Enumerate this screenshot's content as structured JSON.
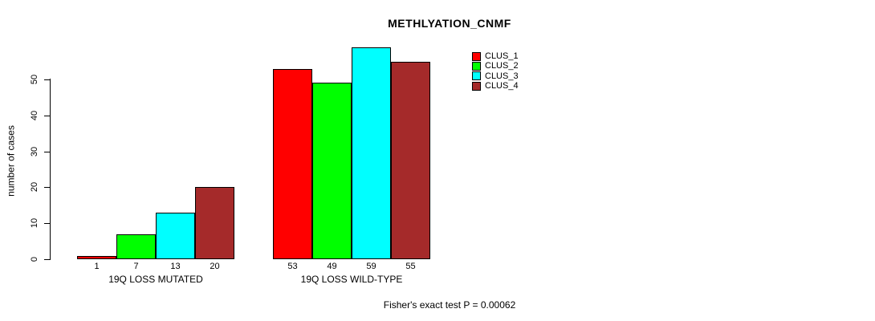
{
  "title": "METHLYATION_CNMF",
  "footer": {
    "stat_text": "Fisher's exact test P = 0.00062"
  },
  "chart_data": {
    "type": "bar",
    "title": "METHLYATION_CNMF",
    "xlabel": "",
    "ylabel": "number of cases",
    "yticks": [
      0,
      10,
      20,
      30,
      40,
      50
    ],
    "ylim": [
      0,
      59
    ],
    "grid": false,
    "legend_position": "topright",
    "series": [
      {
        "name": "CLUS_1",
        "color": "#FF0000"
      },
      {
        "name": "CLUS_2",
        "color": "#00FF00"
      },
      {
        "name": "CLUS_3",
        "color": "#00FFFF"
      },
      {
        "name": "CLUS_4",
        "color": "#A52A2A"
      }
    ],
    "groups": [
      {
        "label": "19Q LOSS MUTATED",
        "values": [
          1,
          7,
          13,
          20
        ]
      },
      {
        "label": "19Q LOSS WILD-TYPE",
        "values": [
          53,
          49,
          59,
          55
        ]
      }
    ],
    "annotation": "Fisher's exact test P = 0.00062"
  }
}
